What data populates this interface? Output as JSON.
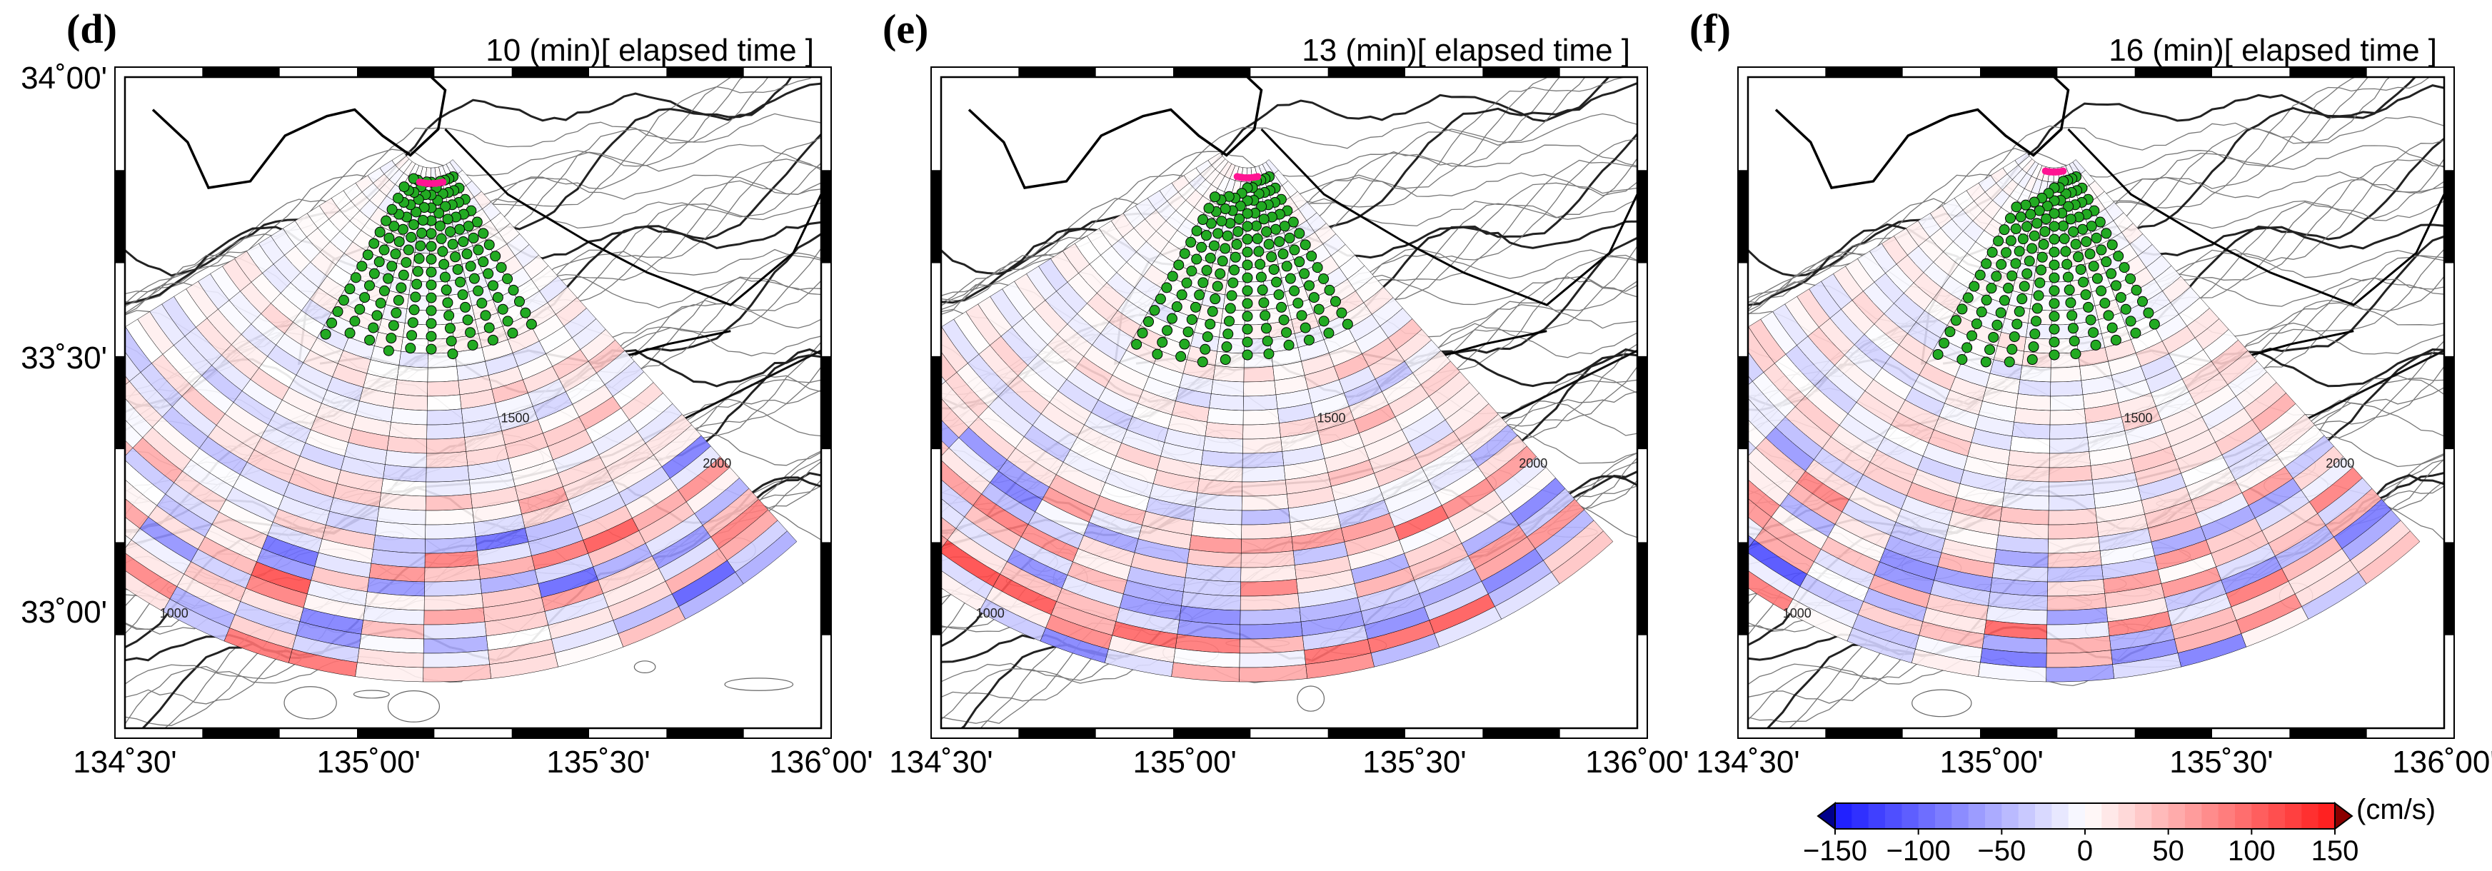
{
  "panels": [
    {
      "letter": "(d)",
      "caption": "10 (min)[ elapsed time ]",
      "gaps": [
        0,
        0,
        0,
        0,
        1,
        0,
        0,
        1,
        0,
        0,
        2
      ]
    },
    {
      "letter": "(e)",
      "caption": "13 (min)[ elapsed time ]",
      "gaps": [
        0,
        0,
        0,
        0,
        1,
        1,
        2,
        3,
        3,
        4,
        4
      ]
    },
    {
      "letter": "(f)",
      "caption": "16 (min)[ elapsed time ]",
      "gaps": [
        0,
        0,
        0,
        0,
        1,
        1,
        2,
        3,
        4,
        5,
        6
      ]
    }
  ],
  "axes": {
    "x_ticks": [
      "134˚30'",
      "135˚00'",
      "135˚30'",
      "136˚00'"
    ],
    "y_ticks": [
      "34˚00'",
      "33˚30'",
      "33˚00'"
    ]
  },
  "contour_labels": [
    "1500",
    "2000",
    "1000"
  ],
  "colorbar": {
    "unit": "(cm/s)",
    "ticks": [
      "−150",
      "−100",
      "−50",
      "0",
      "50",
      "100",
      "150"
    ],
    "range": [
      -150,
      150
    ]
  },
  "colors": {
    "negative": "#1a1aff",
    "positive": "#ff1a1a",
    "zero": "#ffffff",
    "markers": "#22aa22",
    "front": "#ff1493",
    "contour": "#555555",
    "coast": "#000000"
  }
}
